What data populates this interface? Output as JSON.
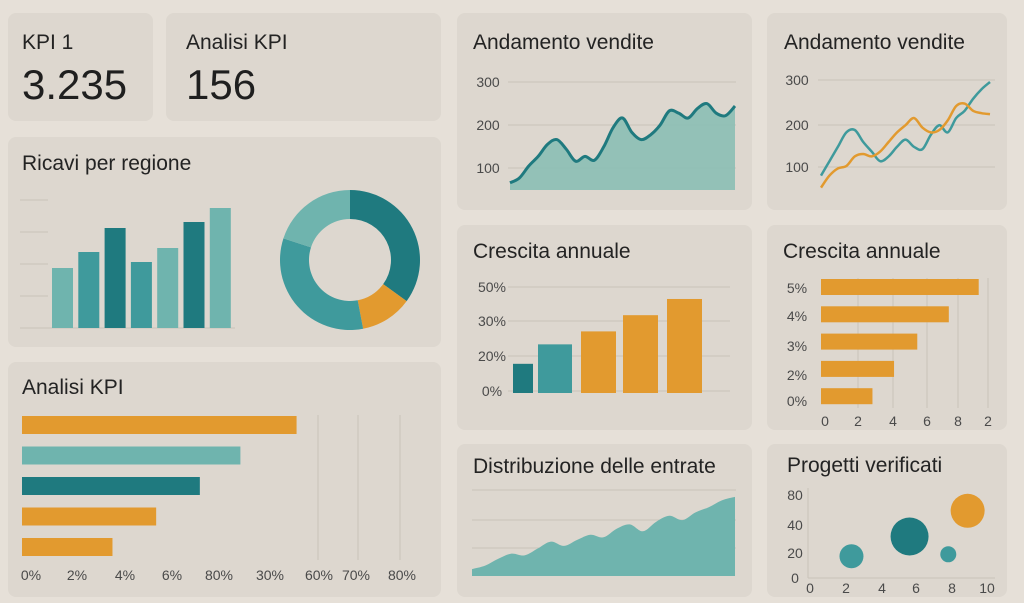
{
  "colors": {
    "teal_dark": "#1f7a7f",
    "teal": "#3f9a9c",
    "teal_light": "#6fb4ae",
    "orange": "#e29a2f",
    "area": "#86bdb3",
    "grid": "#c9c3ba"
  },
  "kpi1": {
    "label": "KPI 1",
    "value": "3.235"
  },
  "kpi2": {
    "label": "Analisi KPI",
    "value": "156"
  },
  "chart_data": [
    {
      "id": "regione",
      "type": "bar",
      "title": "Ricavi per regione",
      "values": [
        30,
        38,
        50,
        33,
        40,
        53,
        60
      ],
      "colors": [
        "teal_light",
        "teal",
        "teal_dark",
        "teal",
        "teal_light",
        "teal_dark",
        "teal_light"
      ],
      "ylim": [
        0,
        70
      ]
    },
    {
      "id": "donut",
      "type": "pie",
      "values": [
        35,
        12,
        33,
        20
      ],
      "colors": [
        "teal_dark",
        "orange",
        "teal",
        "teal_light"
      ]
    },
    {
      "id": "analisi",
      "type": "bar",
      "orientation": "horizontal",
      "title": "Analisi KPI",
      "values": [
        88,
        70,
        57,
        43,
        29
      ],
      "colors": [
        "orange",
        "teal_light",
        "teal_dark",
        "orange",
        "orange"
      ],
      "xlim": [
        0,
        100
      ],
      "tick_labels": [
        "0%",
        "2%",
        "4%",
        "6%",
        "80%",
        "30%",
        "60%",
        "70%",
        "80%"
      ]
    },
    {
      "id": "vendite1",
      "type": "area",
      "title": "Andamento vendite",
      "yticks": [
        "300",
        "200",
        "100"
      ],
      "ylim": [
        80,
        330
      ],
      "x": [
        0,
        1,
        2,
        3,
        4,
        5,
        6,
        7,
        8,
        9,
        10,
        11,
        12,
        13,
        14,
        15,
        16,
        17,
        18,
        19,
        20,
        21,
        22,
        23,
        24
      ],
      "values": [
        95,
        105,
        130,
        150,
        175,
        185,
        165,
        140,
        150,
        142,
        170,
        210,
        230,
        200,
        185,
        195,
        215,
        245,
        240,
        230,
        250,
        260,
        240,
        235,
        255
      ]
    },
    {
      "id": "vendite2",
      "type": "line",
      "title": "Andamento vendite",
      "yticks": [
        "300",
        "200",
        "100"
      ],
      "ylim": [
        80,
        330
      ],
      "x": [
        0,
        1,
        2,
        3,
        4,
        5,
        6,
        7,
        8,
        9,
        10,
        11,
        12,
        13,
        14,
        15,
        16,
        17,
        18,
        19,
        20
      ],
      "series": [
        {
          "values": [
            110,
            140,
            170,
            200,
            205,
            180,
            160,
            140,
            150,
            170,
            185,
            170,
            165,
            195,
            215,
            200,
            230,
            245,
            270,
            290,
            305
          ],
          "color": "teal"
        },
        {
          "values": [
            85,
            110,
            125,
            130,
            150,
            155,
            150,
            160,
            180,
            200,
            215,
            230,
            210,
            200,
            205,
            225,
            255,
            260,
            245,
            240,
            238
          ],
          "color": "orange"
        }
      ]
    },
    {
      "id": "crescita1",
      "type": "bar",
      "title": "Crescita annuale",
      "yticks": [
        "50%",
        "30%",
        "20%",
        "0%"
      ],
      "values": [
        9,
        15,
        19,
        24,
        29
      ],
      "colors": [
        "teal_dark",
        "teal",
        "orange",
        "orange",
        "orange"
      ],
      "ylim": [
        0,
        33
      ]
    },
    {
      "id": "crescita2",
      "type": "bar",
      "orientation": "horizontal",
      "title": "Crescita annuale",
      "yticks": [
        "5%",
        "4%",
        "3%",
        "2%",
        "0%"
      ],
      "xticks": [
        "0",
        "2",
        "4",
        "6",
        "8",
        "2"
      ],
      "values": [
        9.5,
        7.7,
        5.8,
        4.4,
        3.1
      ],
      "colors": [
        "orange",
        "orange",
        "orange",
        "orange",
        "orange"
      ],
      "xlim": [
        0,
        10
      ]
    },
    {
      "id": "distribuzione",
      "type": "area",
      "title": "Distribuzione delle entrate",
      "x": [
        0,
        1,
        2,
        3,
        4,
        5,
        6,
        7,
        8,
        9,
        10,
        11,
        12,
        13,
        14,
        15,
        16,
        17,
        18,
        19,
        20
      ],
      "values": [
        8,
        12,
        20,
        26,
        24,
        32,
        40,
        35,
        42,
        48,
        45,
        55,
        60,
        52,
        63,
        70,
        65,
        74,
        80,
        88,
        92
      ],
      "ylim": [
        0,
        100
      ]
    },
    {
      "id": "progetti",
      "type": "scatter",
      "title": "Progetti verificati",
      "yticks": [
        "80",
        "40",
        "20",
        "0"
      ],
      "xticks": [
        "0",
        "2",
        "4",
        "6",
        "8",
        "10"
      ],
      "xlim": [
        0,
        10
      ],
      "points": [
        {
          "x": 2.3,
          "y": 22,
          "r": 12,
          "color": "teal"
        },
        {
          "x": 5.6,
          "y": 42,
          "r": 19,
          "color": "teal_dark"
        },
        {
          "x": 7.8,
          "y": 24,
          "r": 8,
          "color": "teal"
        },
        {
          "x": 8.9,
          "y": 68,
          "r": 17,
          "color": "orange"
        }
      ]
    }
  ]
}
